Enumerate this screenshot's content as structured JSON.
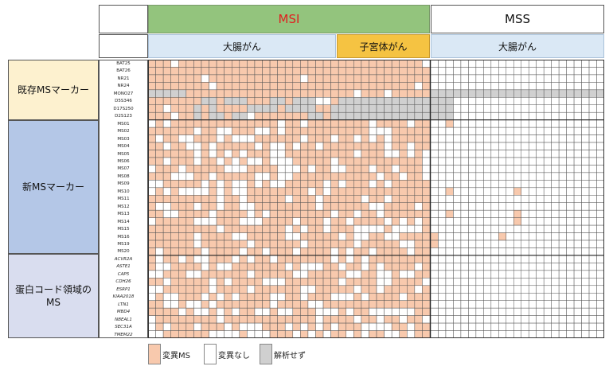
{
  "header": {
    "msi": "MSI",
    "mss": "MSS",
    "colorectal_msi": "大腸がん",
    "endometrial": "子宮体がん",
    "colorectal_mss": "大腸がん"
  },
  "groups": {
    "existing": "既存MSマーカー",
    "new": "新MSマーカー",
    "coding": "蛋白コード領域の MS"
  },
  "markers": [
    "BAT25",
    "BAT26",
    "NR21",
    "NR24",
    "MONO27",
    "D5S346",
    "D17S250",
    "D2S123",
    "MS01",
    "MS02",
    "MS03",
    "MS04",
    "MS05",
    "MS06",
    "MS07",
    "MS08",
    "MS09",
    "MS10",
    "MS11",
    "MS12",
    "MS13",
    "MS14",
    "MS15",
    "MS16",
    "MS19",
    "MS20",
    "ACVR2A",
    "ASTE1",
    "CAP5",
    "CDH26",
    "ESRP1",
    "KIAA2018",
    "LTN1",
    "MBD4",
    "NBEAL1",
    "SEC31A",
    "TMEM22"
  ],
  "italic_from_index": 26,
  "columns": {
    "colorectal_msi": 25,
    "endometrial": 12,
    "colorectal_mss": 23
  },
  "colors": {
    "mutated": "#f8c9ad",
    "no_mutation": "#ffffff",
    "not_analyzed": "#d0d0d0",
    "grid_line": "#555555"
  },
  "legend": {
    "mutated": "変異MS",
    "no_mutation": "変異なし",
    "not_analyzed": "解析せず"
  }
}
